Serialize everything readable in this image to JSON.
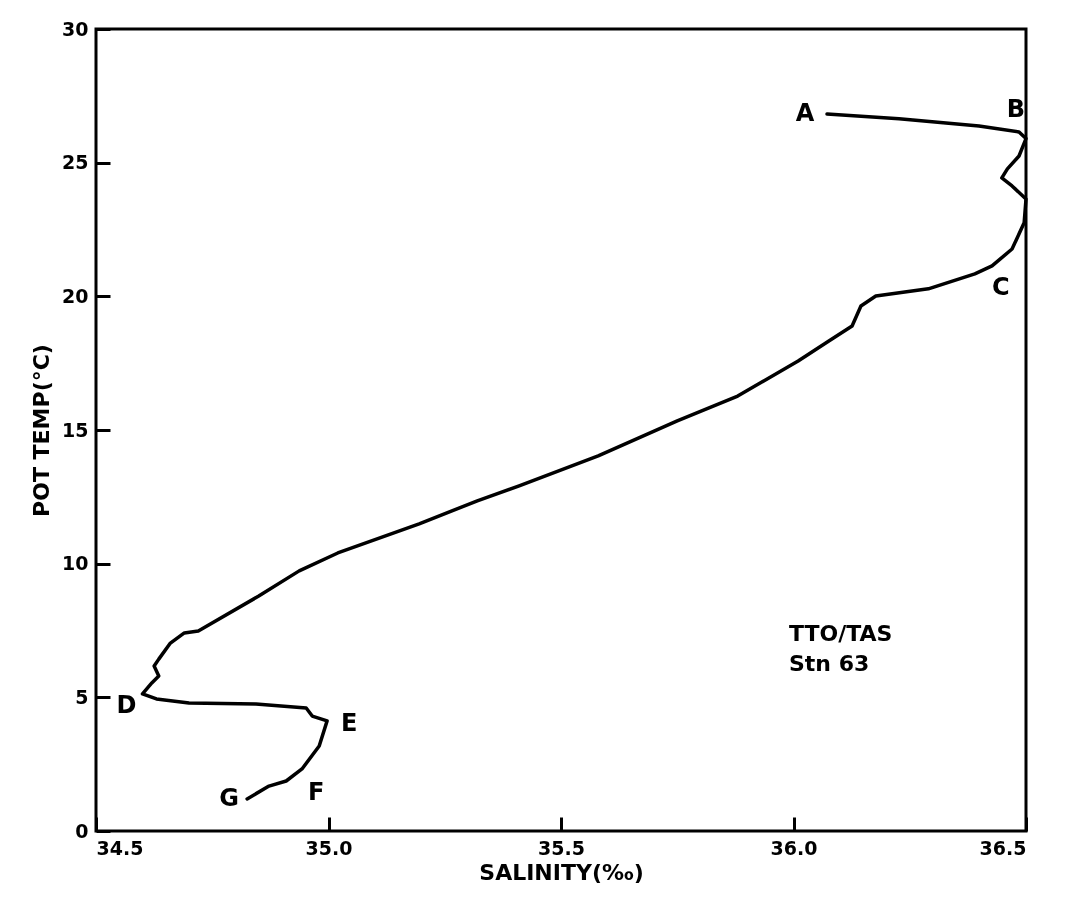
{
  "chart_data": {
    "type": "line",
    "xlabel": "SALINITY(‰)",
    "ylabel": "POT TEMP(°C)",
    "x": [
      36.072,
      36.227,
      36.399,
      36.485,
      36.5,
      36.485,
      36.46,
      36.448,
      36.47,
      36.5,
      36.496,
      36.47,
      36.427,
      36.39,
      36.29,
      36.177,
      36.145,
      36.126,
      36.076,
      36.01,
      35.88,
      35.75,
      35.58,
      35.41,
      35.32,
      35.195,
      35.02,
      34.937,
      34.85,
      34.72,
      34.69,
      34.66,
      34.635,
      34.625,
      34.635,
      34.62,
      34.6,
      34.63,
      34.7,
      34.844,
      34.952,
      34.965,
      34.997,
      34.98,
      34.943,
      34.909,
      34.872,
      34.825
    ],
    "series": [
      {
        "color": "#000000",
        "values": [
          26.82,
          26.64,
          26.37,
          26.15,
          25.9,
          25.25,
          24.77,
          24.43,
          24.13,
          23.64,
          22.75,
          21.77,
          21.14,
          20.84,
          20.28,
          20.01,
          19.64,
          18.89,
          18.33,
          17.58,
          16.27,
          15.34,
          14.03,
          12.91,
          12.35,
          11.49,
          10.4,
          9.73,
          8.79,
          7.48,
          7.41,
          7.03,
          6.43,
          6.17,
          5.8,
          5.54,
          5.13,
          4.94,
          4.79,
          4.75,
          4.6,
          4.3,
          4.12,
          3.18,
          2.32,
          1.87,
          1.68,
          1.2
        ]
      }
    ],
    "xlim": [
      34.5,
      36.5
    ],
    "xticks": [
      34.5,
      {
        "value": 35,
        "label": "35.0"
      },
      35.5,
      {
        "value": 36,
        "label": "36.0"
      },
      36.5
    ],
    "ylim": [
      0,
      30
    ],
    "yticks": [
      0,
      5,
      10,
      15,
      20,
      25,
      30
    ],
    "annotations": [
      {
        "text": "A",
        "x": 36.072,
        "y": 26.82
      },
      {
        "text": "B",
        "x": 36.5,
        "y": 25.9
      },
      {
        "text": "C",
        "x": 36.39,
        "y": 20.84
      },
      {
        "text": "D",
        "x": 34.6,
        "y": 5.13
      },
      {
        "text": "E",
        "x": 34.997,
        "y": 4.12
      },
      {
        "text": "F",
        "x": 34.909,
        "y": 1.87
      },
      {
        "text": "G",
        "x": 34.825,
        "y": 1.2
      },
      "TTO/TAS\nStn 63"
    ],
    "grid": false,
    "legend": false,
    "marker": "none",
    "line_style": "solid"
  }
}
